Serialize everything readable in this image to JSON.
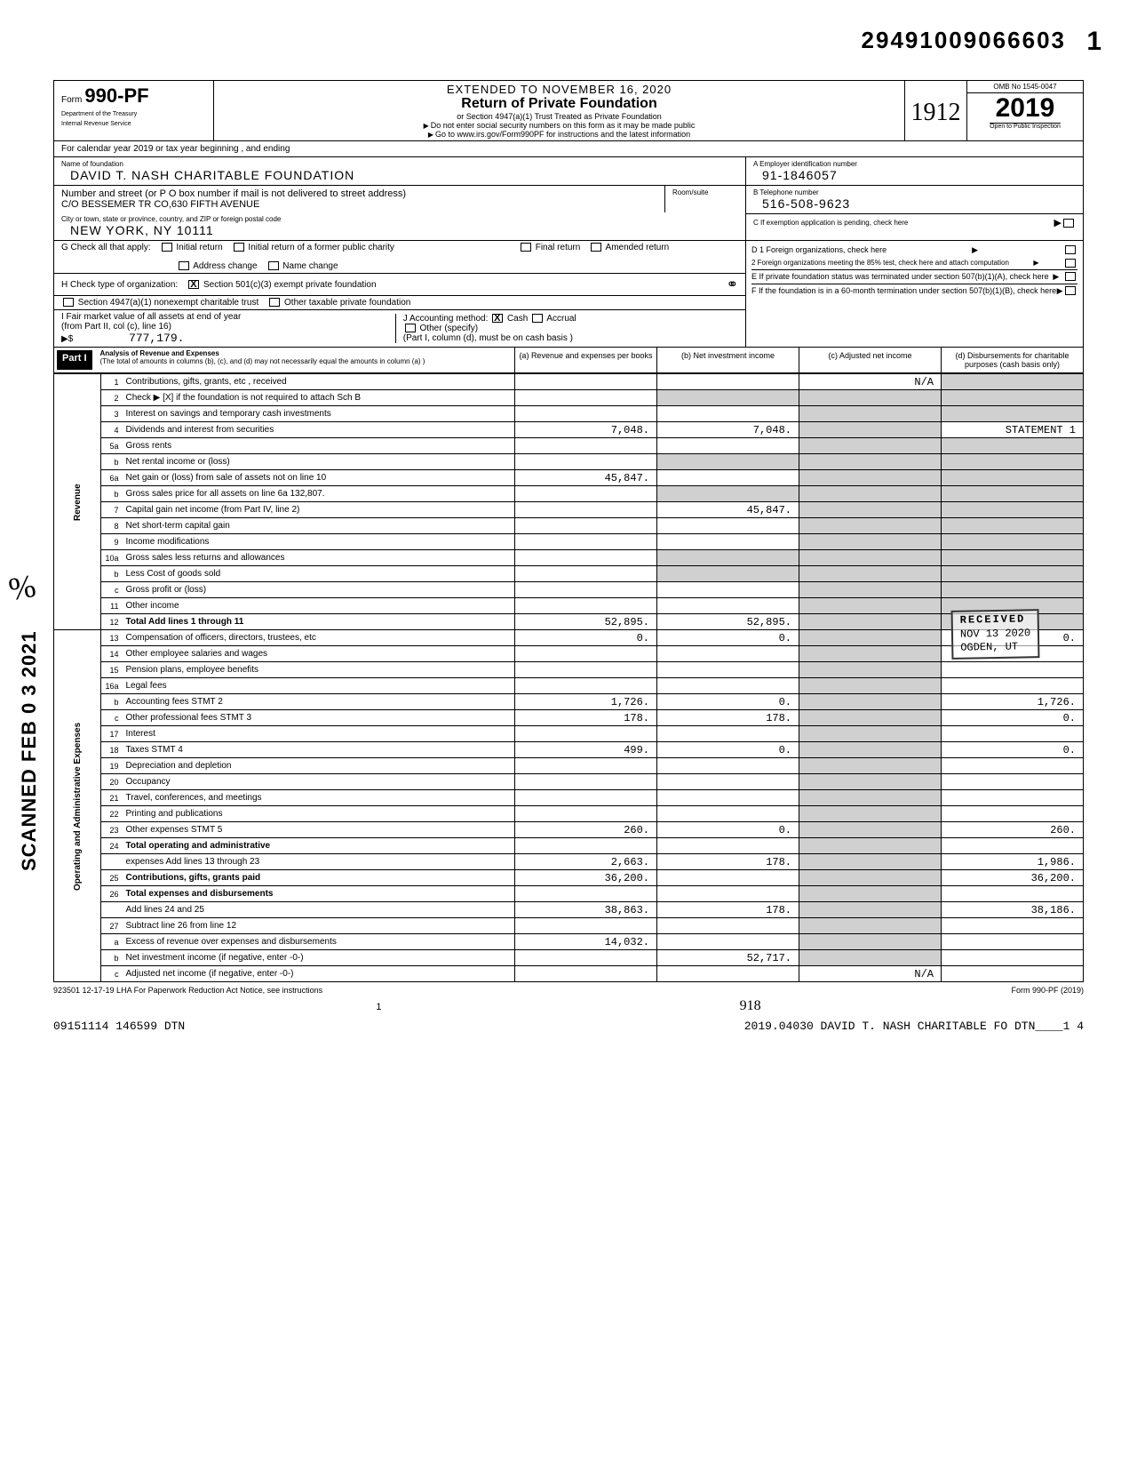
{
  "doc_number": "29491009066603",
  "top_one": "1",
  "scanned_stamp": "SCANNED FEB 0 3 2021",
  "initials": "%",
  "header": {
    "form_prefix": "Form",
    "form_number": "990-PF",
    "dept1": "Department of the Treasury",
    "dept2": "Internal Revenue Service",
    "extended": "EXTENDED TO NOVEMBER 16, 2020",
    "title": "Return of Private Foundation",
    "subtitle1": "or Section 4947(a)(1) Trust Treated as Private Foundation",
    "subtitle2": "Do not enter social security numbers on this form as it may be made public",
    "subtitle3": "Go to www.irs.gov/Form990PF for instructions and the latest information",
    "handwritten_year": "1912",
    "omb": "OMB No 1545-0047",
    "year": "2019",
    "inspection": "Open to Public Inspection"
  },
  "cal_year_line": "For calendar year 2019 or tax year beginning                                                          , and ending",
  "foundation": {
    "name_label": "Name of foundation",
    "name": "DAVID T. NASH CHARITABLE FOUNDATION",
    "addr_label": "Number and street (or P O box number if mail is not delivered to street address)",
    "room_label": "Room/suite",
    "address": "C/O BESSEMER TR CO,630 FIFTH AVENUE",
    "city_label": "City or town, state or province, country, and ZIP or foreign postal code",
    "city": "NEW YORK, NY   10111",
    "ein_label": "A  Employer identification number",
    "ein": "91-1846057",
    "tel_label": "B  Telephone number",
    "tel": "516-508-9623",
    "c_label": "C  If exemption application is pending, check here"
  },
  "section_g": {
    "label": "G  Check all that apply:",
    "opts": [
      "Initial return",
      "Initial return of a former public charity",
      "Final return",
      "Amended return",
      "Address change",
      "Name change"
    ]
  },
  "section_h": {
    "label": "H  Check type of organization:",
    "opt1": "Section 501(c)(3) exempt private foundation",
    "opt2": "Section 4947(a)(1) nonexempt charitable trust",
    "opt3": "Other taxable private foundation"
  },
  "section_i": {
    "label": "I   Fair market value of all assets at end of year",
    "sub": "(from Part II, col  (c), line 16)",
    "value": "777,179.",
    "j_label": "J   Accounting method:",
    "j_cash": "Cash",
    "j_accrual": "Accrual",
    "j_other": "Other (specify)",
    "j_note": "(Part I, column (d), must be on cash basis )"
  },
  "section_d": {
    "d1": "D  1  Foreign organizations, check here",
    "d2": "2  Foreign organizations meeting the 85% test, check here and attach computation",
    "e": "E  If private foundation status was terminated under section 507(b)(1)(A), check here",
    "f": "F  If the foundation is in a 60-month termination under section 507(b)(1)(B), check here"
  },
  "part1": {
    "label": "Part I",
    "title": "Analysis of Revenue and Expenses",
    "note": "(The total of amounts in columns (b), (c), and (d) may not necessarily equal the amounts in column (a) )",
    "col_a": "(a) Revenue and expenses per books",
    "col_b": "(b) Net investment income",
    "col_c": "(c) Adjusted net income",
    "col_d": "(d) Disbursements for charitable purposes (cash basis only)"
  },
  "side_labels": {
    "revenue": "Revenue",
    "expenses": "Operating and Administrative Expenses"
  },
  "rows": [
    {
      "n": "1",
      "d": "Contributions, gifts, grants, etc , received",
      "a": "",
      "b": "",
      "c": "N/A",
      "dcol": ""
    },
    {
      "n": "2",
      "d": "Check ▶ [X] if the foundation is not required to attach Sch B",
      "a": "",
      "b": "",
      "c": "",
      "dcol": ""
    },
    {
      "n": "3",
      "d": "Interest on savings and temporary cash investments",
      "a": "",
      "b": "",
      "c": "",
      "dcol": ""
    },
    {
      "n": "4",
      "d": "Dividends and interest from securities",
      "a": "7,048.",
      "b": "7,048.",
      "c": "",
      "dcol": "STATEMENT 1"
    },
    {
      "n": "5a",
      "d": "Gross rents",
      "a": "",
      "b": "",
      "c": "",
      "dcol": ""
    },
    {
      "n": "b",
      "d": "Net rental income or (loss)",
      "a": "",
      "b": "",
      "c": "",
      "dcol": ""
    },
    {
      "n": "6a",
      "d": "Net gain or (loss) from sale of assets not on line 10",
      "a": "45,847.",
      "b": "",
      "c": "",
      "dcol": ""
    },
    {
      "n": "b",
      "d": "Gross sales price for all assets on line 6a        132,807.",
      "a": "",
      "b": "",
      "c": "",
      "dcol": ""
    },
    {
      "n": "7",
      "d": "Capital gain net income (from Part IV, line 2)",
      "a": "",
      "b": "45,847.",
      "c": "",
      "dcol": ""
    },
    {
      "n": "8",
      "d": "Net short-term capital gain",
      "a": "",
      "b": "",
      "c": "",
      "dcol": ""
    },
    {
      "n": "9",
      "d": "Income modifications",
      "a": "",
      "b": "",
      "c": "",
      "dcol": ""
    },
    {
      "n": "10a",
      "d": "Gross sales less returns and allowances",
      "a": "",
      "b": "",
      "c": "",
      "dcol": ""
    },
    {
      "n": "b",
      "d": "Less Cost of goods sold",
      "a": "",
      "b": "",
      "c": "",
      "dcol": ""
    },
    {
      "n": "c",
      "d": "Gross profit or (loss)",
      "a": "",
      "b": "",
      "c": "",
      "dcol": ""
    },
    {
      "n": "11",
      "d": "Other income",
      "a": "",
      "b": "",
      "c": "",
      "dcol": ""
    },
    {
      "n": "12",
      "d": "Total  Add lines 1 through 11",
      "a": "52,895.",
      "b": "52,895.",
      "c": "",
      "dcol": ""
    },
    {
      "n": "13",
      "d": "Compensation of officers, directors, trustees, etc",
      "a": "0.",
      "b": "0.",
      "c": "",
      "dcol": "0."
    },
    {
      "n": "14",
      "d": "Other employee salaries and wages",
      "a": "",
      "b": "",
      "c": "",
      "dcol": ""
    },
    {
      "n": "15",
      "d": "Pension plans, employee benefits",
      "a": "",
      "b": "",
      "c": "",
      "dcol": ""
    },
    {
      "n": "16a",
      "d": "Legal fees",
      "a": "",
      "b": "",
      "c": "",
      "dcol": ""
    },
    {
      "n": "b",
      "d": "Accounting fees                STMT 2",
      "a": "1,726.",
      "b": "0.",
      "c": "",
      "dcol": "1,726."
    },
    {
      "n": "c",
      "d": "Other professional fees        STMT 3",
      "a": "178.",
      "b": "178.",
      "c": "",
      "dcol": "0."
    },
    {
      "n": "17",
      "d": "Interest",
      "a": "",
      "b": "",
      "c": "",
      "dcol": ""
    },
    {
      "n": "18",
      "d": "Taxes                         STMT 4",
      "a": "499.",
      "b": "0.",
      "c": "",
      "dcol": "0."
    },
    {
      "n": "19",
      "d": "Depreciation and depletion",
      "a": "",
      "b": "",
      "c": "",
      "dcol": ""
    },
    {
      "n": "20",
      "d": "Occupancy",
      "a": "",
      "b": "",
      "c": "",
      "dcol": ""
    },
    {
      "n": "21",
      "d": "Travel, conferences, and meetings",
      "a": "",
      "b": "",
      "c": "",
      "dcol": ""
    },
    {
      "n": "22",
      "d": "Printing and publications",
      "a": "",
      "b": "",
      "c": "",
      "dcol": ""
    },
    {
      "n": "23",
      "d": "Other expenses                STMT 5",
      "a": "260.",
      "b": "0.",
      "c": "",
      "dcol": "260."
    },
    {
      "n": "24",
      "d": "Total operating and administrative",
      "a": "",
      "b": "",
      "c": "",
      "dcol": ""
    },
    {
      "n": "",
      "d": "expenses  Add lines 13 through 23",
      "a": "2,663.",
      "b": "178.",
      "c": "",
      "dcol": "1,986."
    },
    {
      "n": "25",
      "d": "Contributions, gifts, grants paid",
      "a": "36,200.",
      "b": "",
      "c": "",
      "dcol": "36,200."
    },
    {
      "n": "26",
      "d": "Total expenses and disbursements",
      "a": "",
      "b": "",
      "c": "",
      "dcol": ""
    },
    {
      "n": "",
      "d": "Add lines 24 and 25",
      "a": "38,863.",
      "b": "178.",
      "c": "",
      "dcol": "38,186."
    },
    {
      "n": "27",
      "d": "Subtract line 26 from line 12",
      "a": "",
      "b": "",
      "c": "",
      "dcol": ""
    },
    {
      "n": "a",
      "d": "Excess of revenue over expenses and disbursements",
      "a": "14,032.",
      "b": "",
      "c": "",
      "dcol": ""
    },
    {
      "n": "b",
      "d": "Net investment income (if negative, enter -0-)",
      "a": "",
      "b": "52,717.",
      "c": "",
      "dcol": ""
    },
    {
      "n": "c",
      "d": "Adjusted net income (if negative, enter -0-)",
      "a": "",
      "b": "",
      "c": "N/A",
      "dcol": ""
    }
  ],
  "received_stamp": {
    "l1": "RECEIVED",
    "l2": "NOV 13 2020",
    "l3": "OGDEN, UT"
  },
  "footer": {
    "code": "923501  12-17-19   LHA   For Paperwork Reduction Act Notice, see instructions",
    "form_ref": "Form 990-PF (2019)",
    "page": "1",
    "hand918": "918",
    "bottom_left": "09151114 146599 DTN",
    "bottom_right": "2019.04030 DAVID T. NASH CHARITABLE FO DTN____1 4"
  },
  "colors": {
    "border": "#000000",
    "shaded": "#d0d0d0",
    "bg": "#ffffff"
  }
}
